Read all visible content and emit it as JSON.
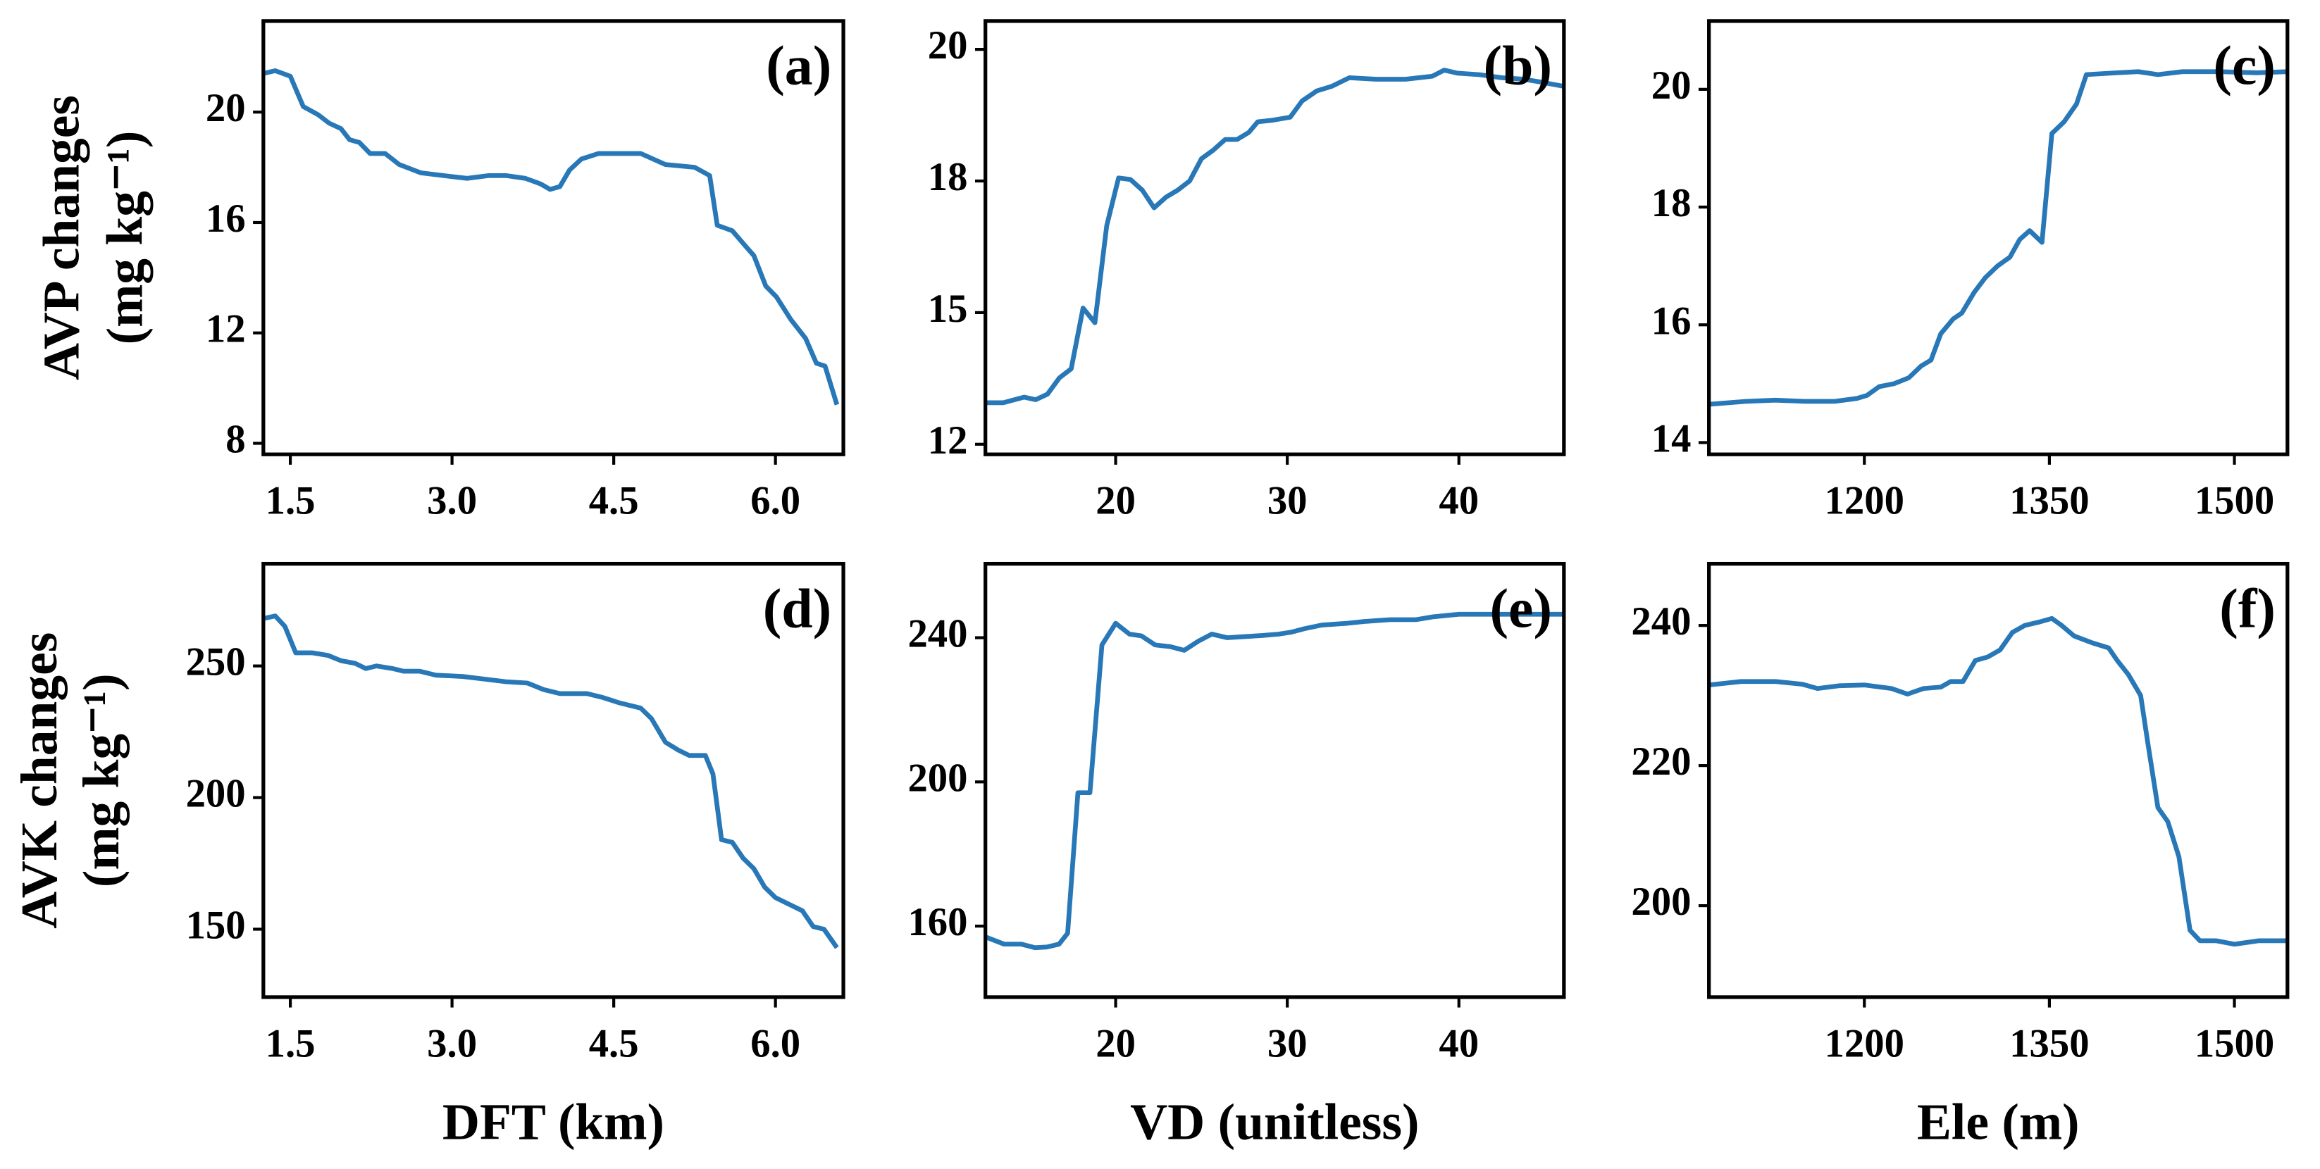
{
  "chart_data": [
    {
      "type": "line",
      "label": "(a)",
      "ylabel": [
        "AVP changes",
        "(mg kg⁻¹)"
      ],
      "color": "#2878b8",
      "x": [
        1.25,
        1.36,
        1.5,
        1.62,
        1.76,
        1.86,
        1.97,
        2.05,
        2.14,
        2.24,
        2.38,
        2.51,
        2.71,
        2.92,
        3.14,
        3.34,
        3.5,
        3.68,
        3.82,
        3.91,
        4.0,
        4.09,
        4.2,
        4.36,
        4.75,
        4.98,
        5.25,
        5.39,
        5.46,
        5.6,
        5.71,
        5.8,
        5.91,
        6.01,
        6.14,
        6.28,
        6.38,
        6.46,
        6.57
      ],
      "values": [
        21.4,
        21.5,
        21.3,
        20.2,
        19.9,
        19.6,
        19.4,
        19.0,
        18.9,
        18.5,
        18.5,
        18.1,
        17.8,
        17.7,
        17.6,
        17.7,
        17.7,
        17.6,
        17.4,
        17.2,
        17.3,
        17.9,
        18.3,
        18.5,
        18.5,
        18.1,
        18.0,
        17.7,
        15.9,
        15.7,
        15.2,
        14.8,
        13.7,
        13.3,
        12.5,
        11.8,
        10.9,
        10.8,
        9.4
      ],
      "xlim": [
        1.25,
        6.63
      ],
      "ylim": [
        7.6,
        23.3
      ],
      "xticks": [
        1.5,
        {
          "value": 3,
          "label": "3.0"
        },
        4.5,
        {
          "value": 6,
          "label": "6.0"
        }
      ],
      "yticks": [
        8,
        12,
        16,
        20
      ]
    },
    {
      "type": "line",
      "label": "(b)",
      "color": "#2878b8",
      "x": [
        12.41,
        13.45,
        14.66,
        15.34,
        16.03,
        16.72,
        17.41,
        18.1,
        18.79,
        19.48,
        20.17,
        20.86,
        21.55,
        22.24,
        22.93,
        23.62,
        24.31,
        25.0,
        25.69,
        26.38,
        27.07,
        27.76,
        28.28,
        29.14,
        30.17,
        30.86,
        31.72,
        32.59,
        33.62,
        35.17,
        36.9,
        38.45,
        39.14,
        39.91,
        41.21,
        42.5,
        43.79,
        44.66,
        46.12
      ],
      "values": [
        13.22,
        13.22,
        13.33,
        13.28,
        13.39,
        13.71,
        13.89,
        15.09,
        14.8,
        16.72,
        17.66,
        17.63,
        17.42,
        17.07,
        17.28,
        17.42,
        17.6,
        18.04,
        18.21,
        18.42,
        18.42,
        18.56,
        18.77,
        18.8,
        18.86,
        19.18,
        19.38,
        19.47,
        19.64,
        19.61,
        19.61,
        19.67,
        19.79,
        19.73,
        19.7,
        19.64,
        19.61,
        19.56,
        19.47
      ],
      "xlim": [
        12.41,
        46.12
      ],
      "ylim": [
        12.2,
        20.76
      ],
      "xticks": [
        20,
        30,
        40
      ],
      "yticks": [
        {
          "value": 12.4,
          "label": "12"
        },
        {
          "value": 15.0,
          "label": "15"
        },
        {
          "value": 17.6,
          "label": "18"
        },
        {
          "value": 20.2,
          "label": "20"
        }
      ]
    },
    {
      "type": "line",
      "label": "(c)",
      "color": "#2878b8",
      "x": [
        1074,
        1104,
        1128,
        1152,
        1176,
        1194,
        1202,
        1212,
        1224,
        1236,
        1246,
        1254,
        1262,
        1272,
        1279,
        1289,
        1298,
        1308,
        1318,
        1326,
        1334,
        1344,
        1352,
        1362,
        1372,
        1380,
        1404,
        1422,
        1438,
        1458,
        1488,
        1518,
        1543
      ],
      "values": [
        14.65,
        14.7,
        14.72,
        14.7,
        14.7,
        14.75,
        14.8,
        14.95,
        15.0,
        15.1,
        15.3,
        15.4,
        15.85,
        16.1,
        16.2,
        16.55,
        16.8,
        17.0,
        17.15,
        17.45,
        17.6,
        17.4,
        19.25,
        19.45,
        19.75,
        20.25,
        20.28,
        20.3,
        20.25,
        20.3,
        20.3,
        20.28,
        20.3
      ],
      "xlim": [
        1074,
        1543
      ],
      "ylim": [
        13.8,
        21.16
      ],
      "xticks": [
        1200,
        1350,
        1500
      ],
      "yticks": [
        14,
        16,
        18,
        20
      ]
    },
    {
      "type": "line",
      "label": "(d)",
      "ylabel": [
        "AVK changes",
        "(mg kg⁻¹)"
      ],
      "xlabel": "DFT (km)",
      "color": "#2878b8",
      "x": [
        1.25,
        1.36,
        1.45,
        1.55,
        1.7,
        1.85,
        1.97,
        2.1,
        2.2,
        2.3,
        2.45,
        2.55,
        2.7,
        2.85,
        3.1,
        3.3,
        3.5,
        3.7,
        3.85,
        4.0,
        4.25,
        4.4,
        4.55,
        4.75,
        4.85,
        4.98,
        5.1,
        5.2,
        5.35,
        5.42,
        5.5,
        5.6,
        5.7,
        5.8,
        5.9,
        6.0,
        6.1,
        6.25,
        6.35,
        6.45,
        6.57
      ],
      "values": [
        268,
        269,
        265,
        255,
        255,
        254,
        252,
        251,
        249,
        250,
        249,
        248,
        248,
        246.5,
        246,
        245,
        244,
        243.5,
        241,
        239.5,
        239.5,
        238,
        236,
        234,
        230,
        221,
        218,
        216,
        216,
        209,
        184,
        183,
        177,
        173,
        166,
        162,
        160,
        157,
        151,
        150,
        143
      ],
      "xlim": [
        1.25,
        6.63
      ],
      "ylim": [
        124.2,
        288.8
      ],
      "xticks": [
        1.5,
        {
          "value": 3,
          "label": "3.0"
        },
        4.5,
        {
          "value": 6,
          "label": "6.0"
        }
      ],
      "yticks": [
        150,
        200,
        250
      ]
    },
    {
      "type": "line",
      "label": "(e)",
      "xlabel": "VD (unitless)",
      "color": "#2878b8",
      "x": [
        12.41,
        13.5,
        14.5,
        15.3,
        16.0,
        16.7,
        17.2,
        17.8,
        18.5,
        19.2,
        20.0,
        20.8,
        21.5,
        22.3,
        23.2,
        24.0,
        24.8,
        25.6,
        26.5,
        27.5,
        28.5,
        29.5,
        30.2,
        31,
        32,
        33.5,
        34.5,
        36,
        37.5,
        38.5,
        40,
        42,
        44,
        46.12
      ],
      "values": [
        157,
        155,
        155,
        154,
        154.2,
        155,
        158,
        197,
        197,
        238,
        244,
        241,
        240.5,
        238,
        237.5,
        236.5,
        239,
        241,
        240,
        240.3,
        240.6,
        241,
        241.5,
        242.5,
        243.5,
        244,
        244.5,
        245,
        245,
        245.8,
        246.5,
        246.5,
        246.5,
        246.5
      ],
      "xlim": [
        12.41,
        46.12
      ],
      "ylim": [
        140.3,
        260.5
      ],
      "xticks": [
        20,
        30,
        40
      ],
      "yticks": [
        160,
        200,
        240
      ]
    },
    {
      "type": "line",
      "label": "(f)",
      "xlabel": "Ele (m)",
      "color": "#2878b8",
      "x": [
        1074,
        1100,
        1128,
        1150,
        1162,
        1180,
        1200,
        1222,
        1235,
        1248,
        1262,
        1270,
        1280,
        1290,
        1300,
        1310,
        1320,
        1330,
        1342,
        1352,
        1360,
        1370,
        1385,
        1398,
        1405,
        1414,
        1424,
        1430,
        1438,
        1446,
        1455,
        1464,
        1472,
        1485,
        1500,
        1520,
        1543
      ],
      "values": [
        231.5,
        232,
        232,
        231.6,
        231,
        231.4,
        231.5,
        231,
        230.2,
        231,
        231.2,
        232,
        232,
        235,
        235.5,
        236.5,
        239,
        240,
        240.5,
        241,
        240,
        238.5,
        237.5,
        236.8,
        235,
        233,
        230,
        223,
        214,
        212,
        207,
        196.5,
        195,
        195,
        194.5,
        195,
        195
      ],
      "xlim": [
        1074,
        1543
      ],
      "ylim": [
        186.95,
        248.8
      ],
      "xticks": [
        1200,
        1350,
        1500
      ],
      "yticks": [
        200,
        220,
        240
      ]
    }
  ]
}
